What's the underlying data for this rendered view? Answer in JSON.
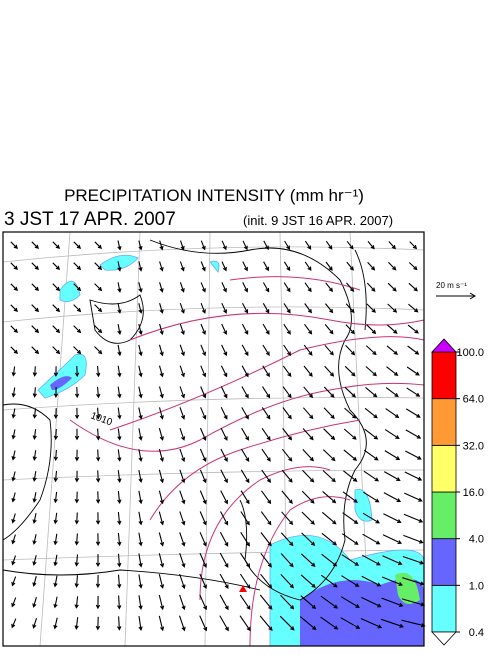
{
  "header": {
    "title": "PRECIPITATION INTENSITY (mm hr⁻¹)",
    "valid_time": "3 JST 17 APR. 2007",
    "init_time": "(init. 9 JST 16 APR. 2007)"
  },
  "reference_vector": {
    "label": "20 m s⁻¹"
  },
  "map": {
    "contour_labels": [
      "1010"
    ]
  },
  "colorbar": {
    "levels": [
      {
        "value": 0.4,
        "label": "0.4"
      },
      {
        "value": 1,
        "label": "1.0"
      },
      {
        "value": 4,
        "label": "4.0"
      },
      {
        "value": 16,
        "label": "16.0"
      },
      {
        "value": 32,
        "label": "32.0"
      },
      {
        "value": 64,
        "label": "64.0"
      },
      {
        "value": 100,
        "label": "100.0"
      }
    ],
    "colors": [
      "#66ffff",
      "#6666ff",
      "#66ee66",
      "#ffff66",
      "#ff9933",
      "#ff0000"
    ],
    "under_color": "#ffffff",
    "over_color": "#cc00ff"
  }
}
